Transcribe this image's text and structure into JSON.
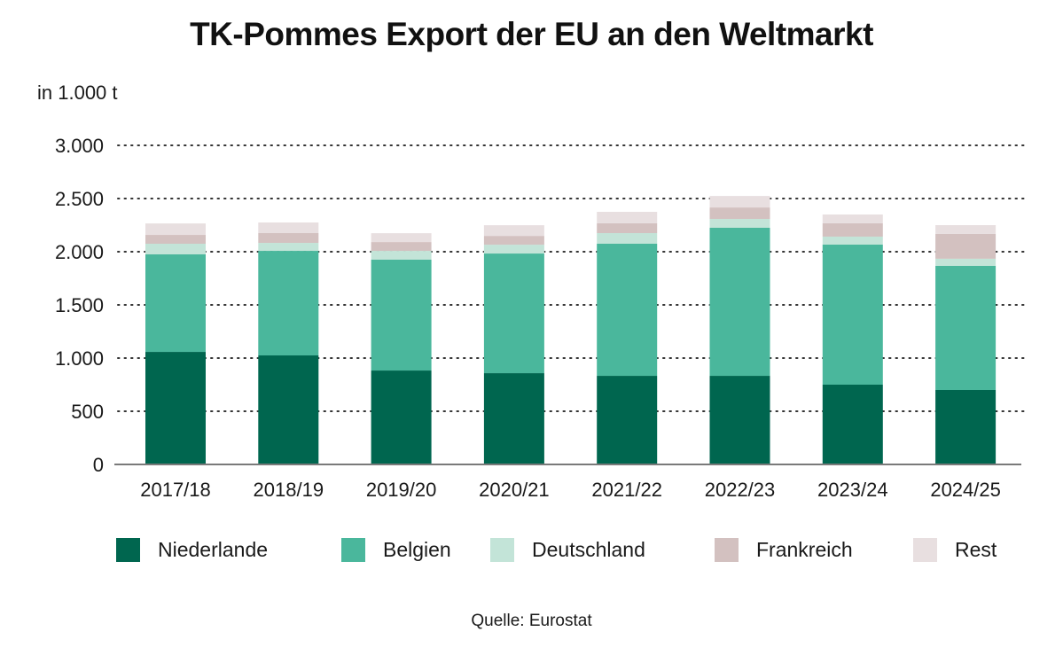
{
  "chart_data": {
    "type": "bar",
    "stacked": true,
    "title": "TK-Pommes Export der EU an den Weltmarkt",
    "ylabel": "in 1.000 t",
    "xlabel": "",
    "ylim": [
      0,
      3000
    ],
    "yticks": [
      0,
      500,
      1000,
      1500,
      2000,
      2500,
      3000
    ],
    "ytick_labels": [
      "0",
      "500",
      "1.000",
      "1.500",
      "2.000",
      "2.500",
      "3.000"
    ],
    "grid": "horizontal-dotted",
    "legend_position": "bottom",
    "categories": [
      "2017/18",
      "2018/19",
      "2019/20",
      "2020/21",
      "2021/22",
      "2022/23",
      "2023/24",
      "2024/25"
    ],
    "series": [
      {
        "name": "Niederlande",
        "color": "#00664f",
        "values": [
          1058,
          1025,
          883,
          858,
          833,
          833,
          750,
          700
        ]
      },
      {
        "name": "Belgien",
        "color": "#4ab79c",
        "values": [
          917,
          983,
          1042,
          1125,
          1242,
          1392,
          1317,
          1167
        ]
      },
      {
        "name": "Deutschland",
        "color": "#c3e4d8",
        "values": [
          100,
          75,
          83,
          83,
          100,
          83,
          75,
          67
        ]
      },
      {
        "name": "Frankreich",
        "color": "#d3c1c0",
        "values": [
          83,
          92,
          83,
          83,
          92,
          108,
          125,
          233
        ]
      },
      {
        "name": "Rest",
        "color": "#e8dfe0",
        "values": [
          108,
          100,
          83,
          100,
          108,
          108,
          83,
          83
        ]
      }
    ],
    "source": "Quelle: Eurostat"
  }
}
